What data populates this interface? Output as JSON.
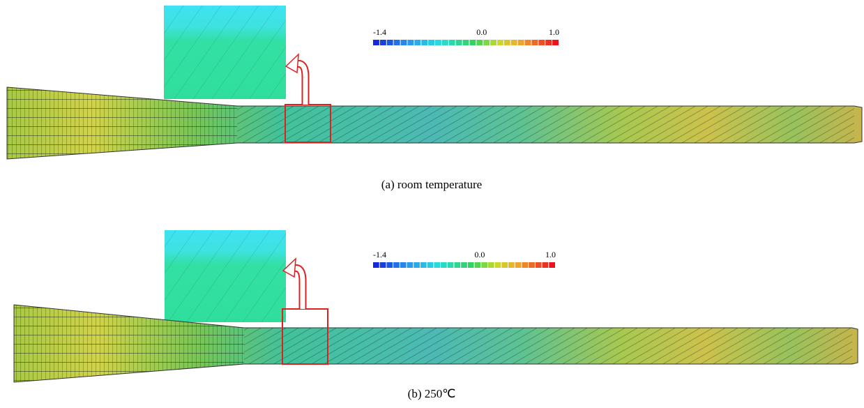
{
  "panels": [
    {
      "caption": "(a) room temperature",
      "colorbar": {
        "ticks": [
          {
            "value": -1.4,
            "label": "-1.4"
          },
          {
            "value": 0,
            "label": "0.0"
          },
          {
            "value": 1,
            "label": "1.0"
          }
        ]
      }
    },
    {
      "caption": "(b) 250℃",
      "colorbar": {
        "ticks": [
          {
            "value": -1.4,
            "label": "-1.4"
          },
          {
            "value": 0,
            "label": "0.0"
          },
          {
            "value": 1,
            "label": "1.0"
          }
        ]
      }
    }
  ]
}
